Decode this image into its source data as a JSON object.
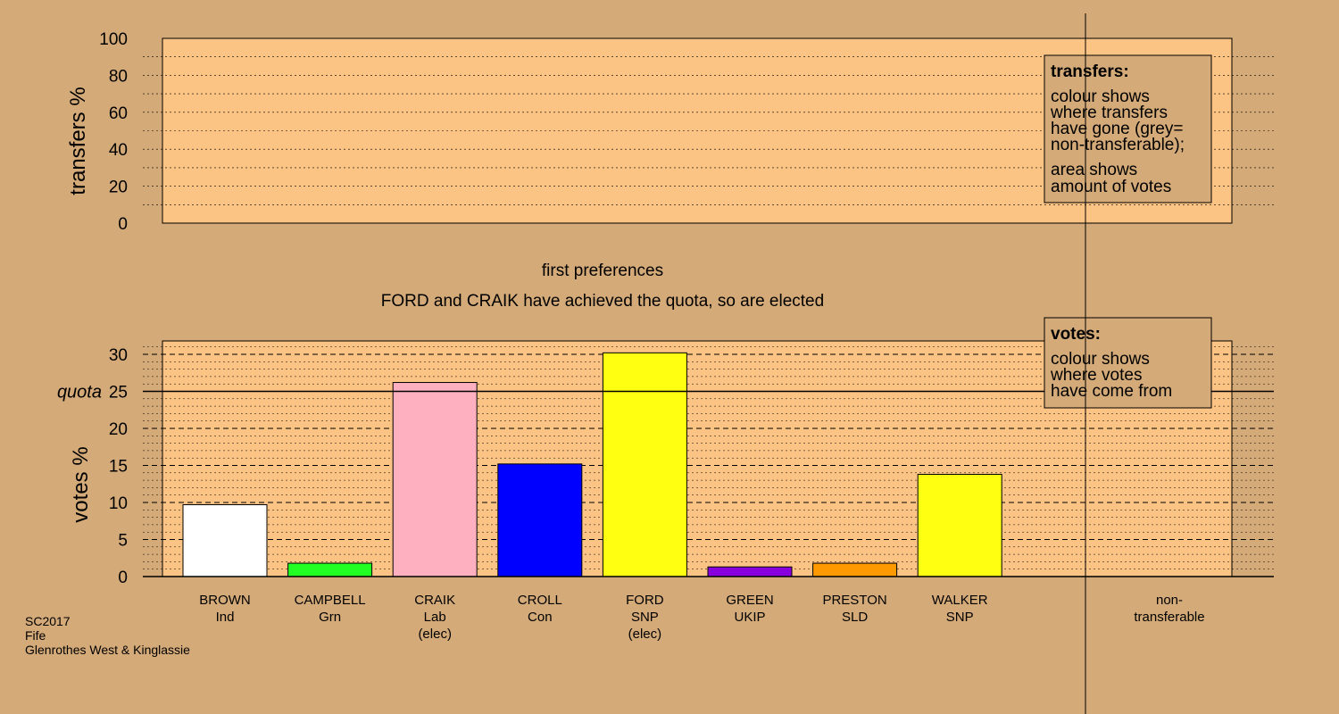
{
  "colors": {
    "background": "#d4aa78",
    "plot_area": "#fbc384",
    "legend_box": "#d4aa78",
    "bar_stroke": "#000000"
  },
  "top_panel": {
    "ylabel": "transfers %",
    "yticks": [
      "0",
      "20",
      "40",
      "60",
      "80",
      "100"
    ],
    "legend": {
      "title": "transfers:",
      "lines1": [
        "colour shows",
        "where transfers",
        "have gone (grey=",
        "non-transferable);"
      ],
      "lines2": [
        "area shows",
        "amount of votes"
      ]
    }
  },
  "stage_title": "first preferences",
  "stage_message": "FORD and CRAIK have achieved the quota, so are elected",
  "bottom_panel": {
    "ylabel": "votes %",
    "yticks": [
      "0",
      "5",
      "10",
      "15",
      "20",
      "25",
      "30"
    ],
    "quota_label": "quota",
    "legend": {
      "title": "votes:",
      "lines": [
        "colour shows",
        "where votes",
        "have come from"
      ]
    }
  },
  "chart_data": {
    "type": "bar",
    "ylabel": "votes %",
    "ylim": [
      0,
      32
    ],
    "quota": 25,
    "top_ylabel": "transfers %",
    "top_ylim": [
      0,
      100
    ],
    "categories": [
      {
        "name": "BROWN",
        "party": "Ind",
        "note": ""
      },
      {
        "name": "CAMPBELL",
        "party": "Grn",
        "note": ""
      },
      {
        "name": "CRAIK",
        "party": "Lab",
        "note": "(elec)"
      },
      {
        "name": "CROLL",
        "party": "Con",
        "note": ""
      },
      {
        "name": "FORD",
        "party": "SNP",
        "note": "(elec)"
      },
      {
        "name": "GREEN",
        "party": "UKIP",
        "note": ""
      },
      {
        "name": "PRESTON",
        "party": "SLD",
        "note": ""
      },
      {
        "name": "WALKER",
        "party": "SNP",
        "note": ""
      }
    ],
    "values": [
      9.7,
      1.8,
      26.2,
      15.2,
      30.2,
      1.3,
      1.8,
      13.8
    ],
    "bar_colors": [
      "#ffffff",
      "#22ff22",
      "#ffb0c0",
      "#0000ff",
      "#ffff11",
      "#8800dd",
      "#ff9900",
      "#ffff11"
    ],
    "extra_category": {
      "line1": "non-",
      "line2": "transferable"
    }
  },
  "footer": {
    "lines": [
      "SC2017",
      "Fife",
      "Glenrothes West & Kinglassie"
    ]
  }
}
